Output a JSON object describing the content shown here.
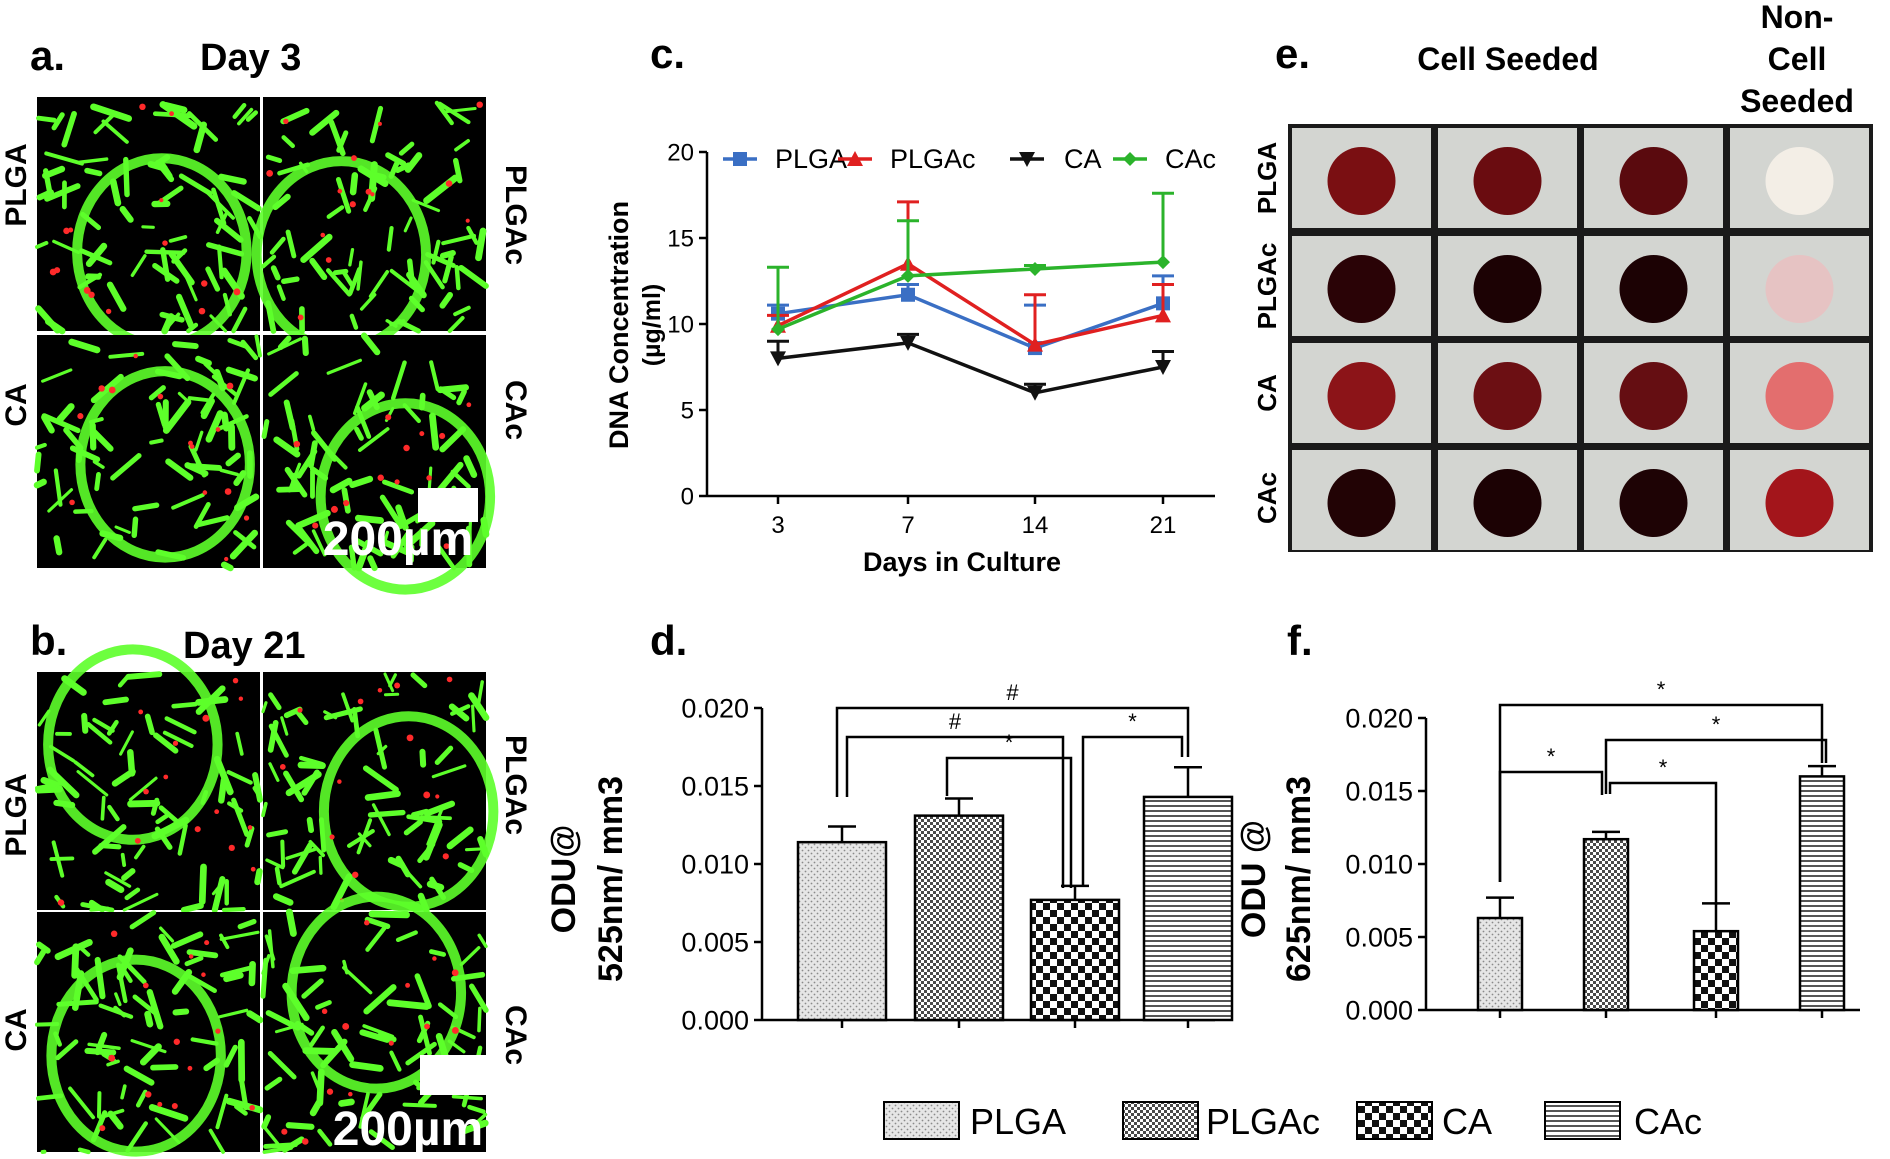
{
  "panels": {
    "a": {
      "letter": "a.",
      "title": "Day 3",
      "scale_label": "200µm",
      "labels": [
        "PLGA",
        "PLGAc",
        "CA",
        "CAc"
      ]
    },
    "b": {
      "letter": "b.",
      "title": "Day 21",
      "scale_label": "200µm",
      "labels": [
        "PLGA",
        "PLGAc",
        "CA",
        "CAc"
      ]
    },
    "c": {
      "letter": "c."
    },
    "d": {
      "letter": "d."
    },
    "e": {
      "letter": "e.",
      "col_header_1": "Cell Seeded",
      "col_header_2": [
        "Non-",
        "Cell",
        "Seeded"
      ],
      "row_labels": [
        "PLGA",
        "PLGAc",
        "CA",
        "CAc"
      ]
    },
    "f": {
      "letter": "f."
    }
  },
  "colors": {
    "PLGA": "#3a6fc4",
    "PLGAc": "#e02020",
    "CA": "#111111",
    "CAc": "#2bb32b",
    "fluor_green": "#5dff2a",
    "fluor_red": "#ff2a2a"
  },
  "legend": {
    "items": [
      "PLGA",
      "PLGAc",
      "CA",
      "CAc"
    ]
  },
  "chart_data": [
    {
      "id": "c",
      "type": "line",
      "x": [
        "3",
        "7",
        "14",
        "21"
      ],
      "xlabel": "Days in Culture",
      "ylabel": [
        "DNA Concentration",
        "(µg/ml)"
      ],
      "ylim": [
        0,
        20
      ],
      "yticks": [
        "0",
        "5",
        "10",
        "15",
        "20"
      ],
      "legend": "top",
      "series": [
        {
          "name": "PLGA",
          "values": [
            10.6,
            11.7,
            8.6,
            11.2
          ],
          "err": [
            0.5,
            0.6,
            2.5,
            1.6
          ],
          "marker": "square"
        },
        {
          "name": "PLGAc",
          "values": [
            9.9,
            13.5,
            8.8,
            10.5
          ],
          "err": [
            0.6,
            3.6,
            2.9,
            1.8
          ],
          "marker": "triangle-up"
        },
        {
          "name": "CA",
          "values": [
            8.0,
            8.9,
            6.0,
            7.5
          ],
          "err": [
            1.0,
            0.5,
            0.5,
            0.9
          ],
          "marker": "triangle-down"
        },
        {
          "name": "CAc",
          "values": [
            9.7,
            12.8,
            13.2,
            13.6
          ],
          "err": [
            3.6,
            3.2,
            0.2,
            4.0
          ],
          "marker": "diamond"
        }
      ]
    },
    {
      "id": "d",
      "type": "bar",
      "categories": [
        "PLGA",
        "PLGAc",
        "CA",
        "CAc"
      ],
      "values": [
        0.0114,
        0.0131,
        0.0077,
        0.0143
      ],
      "err": [
        0.001,
        0.0011,
        0.0009,
        0.0019
      ],
      "ylabel": [
        "ODU@",
        "525nm/ mm3"
      ],
      "ylim": [
        0,
        0.02
      ],
      "yticks": [
        "0.000",
        "0.005",
        "0.010",
        "0.015",
        "0.020"
      ],
      "annotations": [
        {
          "from": "PLGA",
          "to": "CAc",
          "label": "#"
        },
        {
          "from": "PLGA",
          "to": "CA",
          "label": "#"
        },
        {
          "from": "PLGAc",
          "to": "CA",
          "label": "*"
        },
        {
          "from": "CA",
          "to": "CAc",
          "label": "*"
        }
      ]
    },
    {
      "id": "f",
      "type": "bar",
      "categories": [
        "PLGA",
        "PLGAc",
        "CA",
        "CAc"
      ],
      "values": [
        0.0063,
        0.0117,
        0.0054,
        0.016
      ],
      "err": [
        0.0014,
        0.0005,
        0.0019,
        0.0007
      ],
      "ylabel": [
        "ODU @",
        "625nm/ mm3"
      ],
      "ylim": [
        0,
        0.02
      ],
      "yticks": [
        "0.000",
        "0.005",
        "0.010",
        "0.015",
        "0.020"
      ],
      "annotations": [
        {
          "from": "PLGA",
          "to": "CAc",
          "label": "*"
        },
        {
          "from": "PLGAc",
          "to": "CAc",
          "label": "*"
        },
        {
          "from": "PLGA",
          "to": "PLGAc",
          "label": "*"
        },
        {
          "from": "PLGAc",
          "to": "CA",
          "label": "*"
        }
      ]
    }
  ]
}
